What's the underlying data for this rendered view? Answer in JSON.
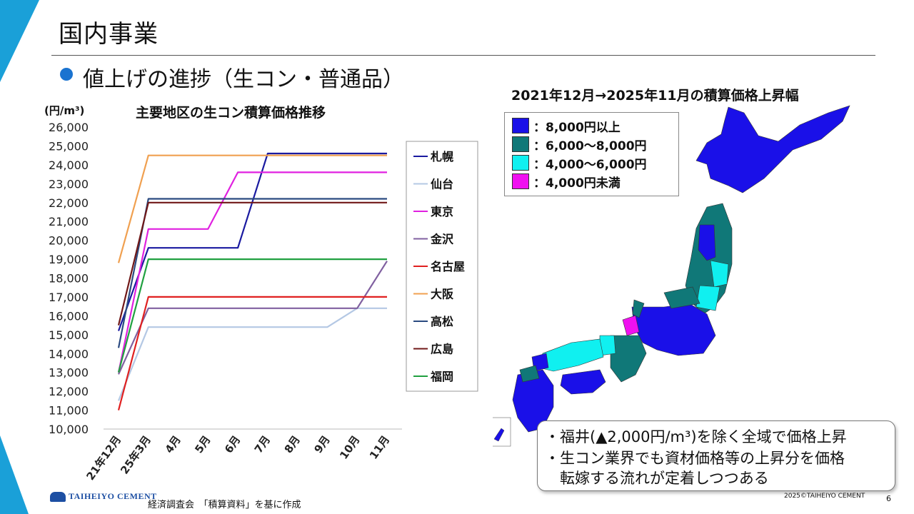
{
  "slide": {
    "title": "国内事業",
    "subtitle": "値上げの進捗（生コン・普通品）",
    "page_number": "6",
    "copyright": "2025©TAIHEIYO CEMENT",
    "source": "経済調査会　「積算資料」を基に作成",
    "logo_text": "TAIHEIYO CEMENT"
  },
  "chart_data": {
    "type": "line",
    "title": "主要地区の生コン積算価格推移",
    "ylabel": "(円/m³)",
    "xlabel": "",
    "ylim": [
      10000,
      26000
    ],
    "ytick_step": 1000,
    "y_tick_labels": [
      "10,000",
      "11,000",
      "12,000",
      "13,000",
      "14,000",
      "15,000",
      "16,000",
      "17,000",
      "18,000",
      "19,000",
      "20,000",
      "21,000",
      "22,000",
      "23,000",
      "24,000",
      "25,000",
      "26,000"
    ],
    "grid": false,
    "legend_position": "right",
    "categories": [
      "21年12月",
      "25年3月",
      "4月",
      "5月",
      "6月",
      "7月",
      "8月",
      "9月",
      "10月",
      "11月"
    ],
    "series": [
      {
        "name": "札幌",
        "color": "#1a1aa0",
        "values": [
          15200,
          19600,
          19600,
          19600,
          19600,
          24600,
          24600,
          24600,
          24600,
          24600
        ]
      },
      {
        "name": "仙台",
        "color": "#b4c8e4",
        "values": [
          11500,
          15400,
          15400,
          15400,
          15400,
          15400,
          15400,
          15400,
          16400,
          16400
        ]
      },
      {
        "name": "東京",
        "color": "#e020e0",
        "values": [
          13000,
          20600,
          20600,
          20600,
          23600,
          23600,
          23600,
          23600,
          23600,
          23600
        ]
      },
      {
        "name": "金沢",
        "color": "#8060a0",
        "values": [
          12900,
          16400,
          16400,
          16400,
          16400,
          16400,
          16400,
          16400,
          16400,
          18900
        ]
      },
      {
        "name": "名古屋",
        "color": "#e02020",
        "values": [
          11000,
          17000,
          17000,
          17000,
          17000,
          17000,
          17000,
          17000,
          17000,
          17000
        ]
      },
      {
        "name": "大阪",
        "color": "#f0a050",
        "values": [
          18800,
          24500,
          24500,
          24500,
          24500,
          24500,
          24500,
          24500,
          24500,
          24500
        ]
      },
      {
        "name": "高松",
        "color": "#2a4a80",
        "values": [
          14300,
          22200,
          22200,
          22200,
          22200,
          22200,
          22200,
          22200,
          22200,
          22200
        ]
      },
      {
        "name": "広島",
        "color": "#701818",
        "values": [
          15500,
          22000,
          22000,
          22000,
          22000,
          22000,
          22000,
          22000,
          22000,
          22000
        ]
      },
      {
        "name": "福岡",
        "color": "#20a040",
        "values": [
          13000,
          19000,
          19000,
          19000,
          19000,
          19000,
          19000,
          19000,
          19000,
          19000
        ]
      }
    ]
  },
  "map": {
    "title": "2021年12月→2025年11月の積算価格上昇幅",
    "legend": [
      {
        "label": "：8,000円以上",
        "color": "#1a10e8"
      },
      {
        "label": "：6,000～8,000円",
        "color": "#107878"
      },
      {
        "label": "：4,000～6,000円",
        "color": "#10f0f0"
      },
      {
        "label": "：4,000円未満",
        "color": "#f010f0"
      }
    ]
  },
  "notes": [
    "・福井(▲2,000円/m³)を除く全域で価格上昇",
    "・生コン業界でも資材価格等の上昇分を価格",
    "　転嫁する流れが定着しつつある"
  ]
}
